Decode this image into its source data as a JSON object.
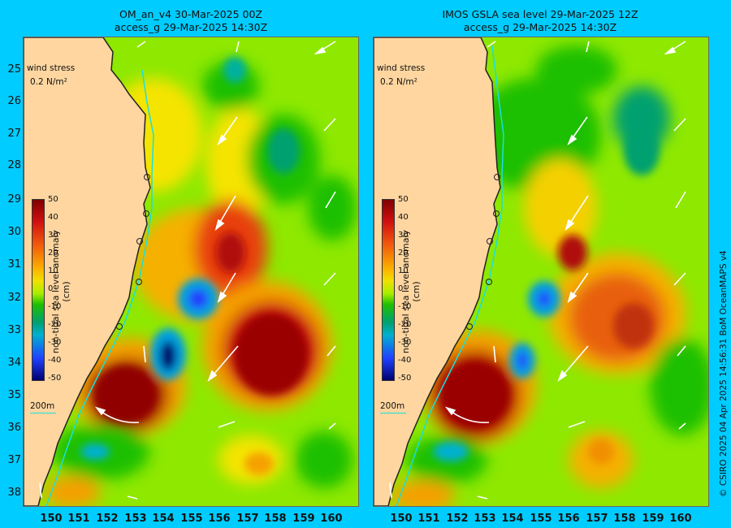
{
  "panels": [
    {
      "title_line1": "OM_an_v4  30-Mar-2025 00Z",
      "title_line2": "access_g 29-Mar-2025 14:30Z"
    },
    {
      "title_line1": "IMOS GSLA sea level  29-Mar-2025 12Z",
      "title_line2": "access_g 29-Mar-2025 14:30Z"
    }
  ],
  "legend": {
    "wind_stress_label": "wind stress",
    "wind_stress_value": "0.2 N/m²",
    "isobath_label": "200m",
    "colorbar_title": "non-tidal sea level anomaly (cm)",
    "colorbar_ticks": [
      "50",
      "40",
      "30",
      "20",
      "10",
      "0",
      "-10",
      "-20",
      "-30",
      "-40",
      "-50"
    ]
  },
  "axes": {
    "lat_ticks": [
      "25",
      "26",
      "27",
      "28",
      "29",
      "30",
      "31",
      "32",
      "33",
      "34",
      "35",
      "36",
      "37",
      "38"
    ],
    "lon_ticks": [
      "150",
      "151",
      "152",
      "153",
      "154",
      "155",
      "156",
      "157",
      "158",
      "159",
      "160"
    ]
  },
  "credit": "© CSIRO 2025   04 Apr 2025 14:56:31 BoM OceanMAPS v4",
  "colors": {
    "background": "#00ccff",
    "land": "#ffd6a0",
    "isobath": "#19e0e0",
    "base_field": "#8ee800"
  }
}
